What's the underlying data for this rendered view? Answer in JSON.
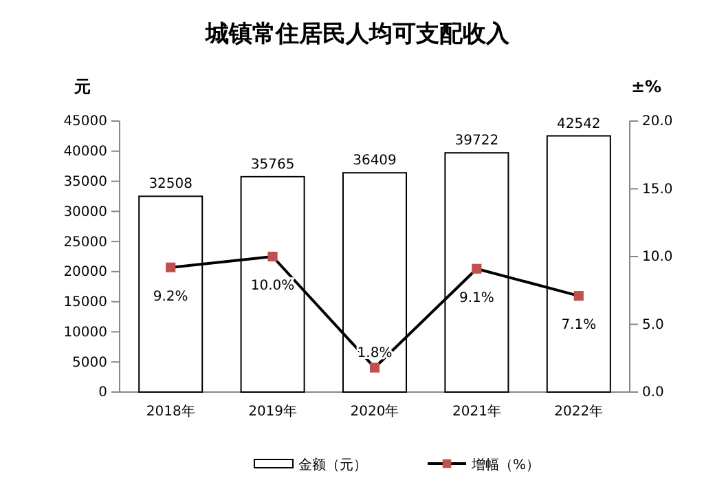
{
  "chart_data": {
    "type": "bar",
    "title": "城镇常住居民人均可支配收入",
    "ylabel": "元",
    "y2label": "±%",
    "categories": [
      "2018年",
      "2019年",
      "2020年",
      "2021年",
      "2022年"
    ],
    "series": [
      {
        "name": "金额（元）",
        "color": "#ffffff",
        "values": [
          32508,
          35765,
          36409,
          39722,
          42542
        ]
      },
      {
        "name": "增幅（%）",
        "type": "line",
        "axis": "y2",
        "color": "#000000",
        "marker": "square",
        "values": [
          9.2,
          10.0,
          1.8,
          9.1,
          7.1
        ],
        "value_labels": [
          "9.2%",
          "10.0%",
          "1.8%",
          "9.1%",
          "7.1%"
        ]
      }
    ],
    "data_labels": true,
    "ylim": [
      0,
      45000
    ],
    "yticks": [
      0,
      5000,
      10000,
      15000,
      20000,
      25000,
      30000,
      35000,
      40000,
      45000
    ],
    "y2lim": [
      0,
      20
    ],
    "y2ticks": [
      {
        "value": 0,
        "label": "0.0"
      },
      {
        "value": 5,
        "label": "5.0"
      },
      {
        "value": 10,
        "label": "10.0"
      },
      {
        "value": 15,
        "label": "15.0"
      },
      {
        "value": 20,
        "label": "20.0"
      }
    ],
    "grid": false,
    "legend": "bottom"
  }
}
